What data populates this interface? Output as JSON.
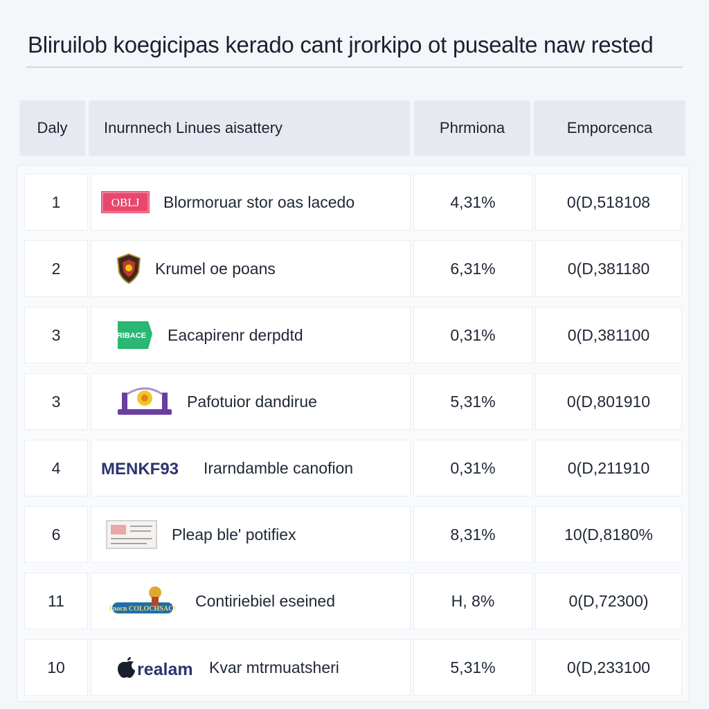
{
  "page": {
    "title": "Bliruilob koegicipas kerado cant jrorkipo ot pusealte naw rested"
  },
  "table": {
    "headers": {
      "day": "Daly",
      "name": "Inurnnech Linues aisattery",
      "percent": "Phrmiona",
      "value": "Emporcenca"
    },
    "rows": [
      {
        "day": "1",
        "logo_text": "OBLJ",
        "logo_icon": "pink-badge-logo",
        "name": "Blormoruar stor oas lacedo",
        "percent": "4,31%",
        "value": "0(D,518108"
      },
      {
        "day": "2",
        "logo_text": "",
        "logo_icon": "crest-shield-logo",
        "name": "Krumel oe poans",
        "percent": "6,31%",
        "value": "0(D,381180"
      },
      {
        "day": "3",
        "logo_text": "RIBACE",
        "logo_icon": "green-flag-logo",
        "name": "Eacapirenr derpdtd",
        "percent": "0,31%",
        "value": "0(D,381100"
      },
      {
        "day": "3",
        "logo_text": "",
        "logo_icon": "purple-arch-logo",
        "name": "Pafotuior dandirue",
        "percent": "5,31%",
        "value": "0(D,801910"
      },
      {
        "day": "4",
        "logo_text": "MENKF93",
        "logo_icon": "wordmark-logo",
        "name": "Irarndamble canofion",
        "percent": "0,31%",
        "value": "0(D,211910"
      },
      {
        "day": "6",
        "logo_text": "",
        "logo_icon": "document-card-logo",
        "name": "Pleap ble' potifiex",
        "percent": "8,31%",
        "value": "10(D,8180%"
      },
      {
        "day": "11",
        "logo_text": "Tnocn COLOCHSACS",
        "logo_icon": "mascot-banner-logo",
        "name": "Contiriebiel eseined",
        "percent": "H, 8%",
        "value": "0(D,72300)"
      },
      {
        "day": "10",
        "logo_text": "realam",
        "logo_icon": "apple-wordmark-logo",
        "name": "Kvar mtrmuatsheri",
        "percent": "5,31%",
        "value": "0(D,233100"
      }
    ]
  },
  "colors": {
    "page_bg": "#f4f6f9",
    "header_bg": "#e6eaf0",
    "logo_pink": "#e8476e",
    "logo_green": "#2bb673",
    "logo_purple": "#6a3fa0",
    "logo_navy": "#2c3470"
  }
}
